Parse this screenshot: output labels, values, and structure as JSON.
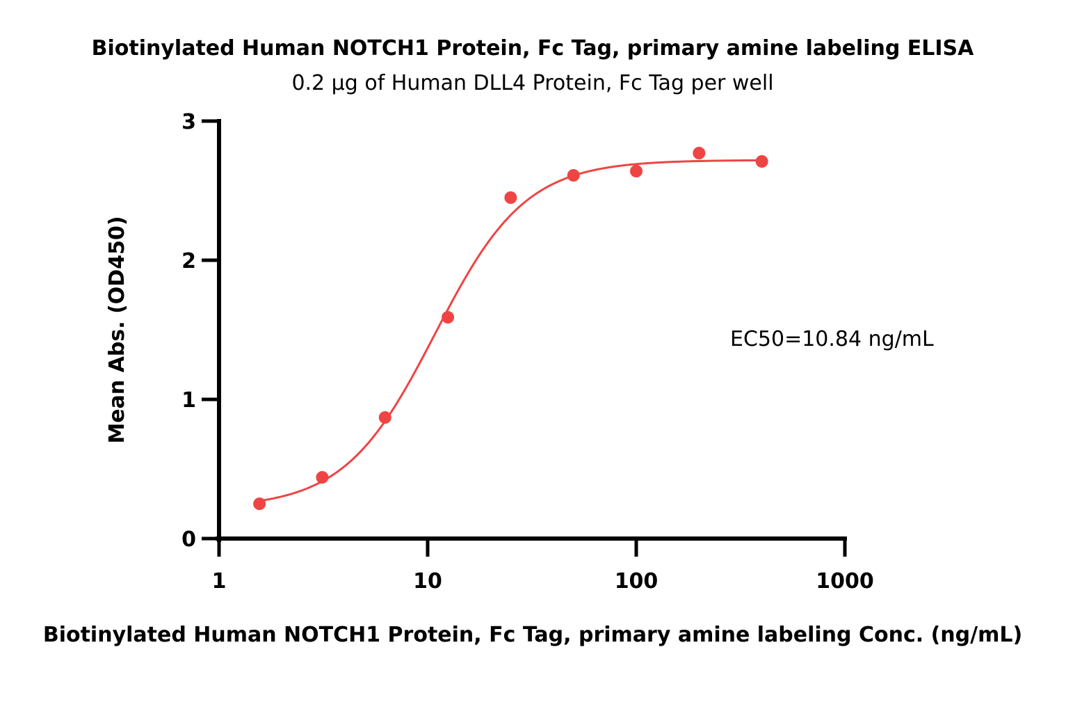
{
  "chart_data": {
    "type": "scatter",
    "title": "Biotinylated Human NOTCH1 Protein, Fc Tag, primary amine labeling ELISA",
    "subtitle": "0.2 μg of Human DLL4 Protein, Fc Tag per well",
    "xlabel": "Biotinylated Human NOTCH1 Protein, Fc Tag, primary amine labeling Conc. (ng/mL)",
    "ylabel": "Mean Abs. (OD450)",
    "x_scale": "log",
    "xlim": [
      1,
      1000
    ],
    "ylim": [
      0,
      3
    ],
    "x_ticks": [
      1,
      10,
      100,
      1000
    ],
    "x_tick_labels": [
      "1",
      "10",
      "100",
      "1000"
    ],
    "y_ticks": [
      0,
      1,
      2,
      3
    ],
    "y_tick_labels": [
      "0",
      "1",
      "2",
      "3"
    ],
    "grid": false,
    "annotation": "EC50=10.84 ng/mL",
    "color": "#ef4444",
    "series": [
      {
        "x": [
          1.5625,
          3.125,
          6.25,
          12.5,
          25,
          50,
          100,
          200,
          400
        ],
        "y": [
          0.25,
          0.44,
          0.87,
          1.59,
          2.45,
          2.61,
          2.64,
          2.77,
          2.71
        ]
      }
    ],
    "fit": {
      "model": "4PL",
      "bottom": 0.22,
      "top": 2.72,
      "ec50": 10.84,
      "hill": 2.0,
      "x_range": [
        1.5625,
        400
      ]
    }
  }
}
